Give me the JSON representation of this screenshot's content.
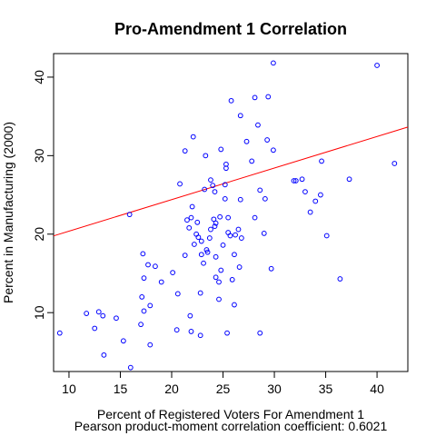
{
  "chart_data": {
    "type": "scatter",
    "title": "Pro-Amendment 1 Correlation",
    "xlabel": "Percent of Registered Voters For Amendment 1",
    "ylabel": "Percent in Manufacturing (2000)",
    "subtitle": "Pearson product-moment correlation coefficient: 0.6021",
    "xlim": [
      8.5,
      43
    ],
    "ylim": [
      2.5,
      43
    ],
    "xticks": [
      10,
      15,
      20,
      25,
      30,
      35,
      40
    ],
    "yticks": [
      10,
      20,
      30,
      40
    ],
    "grid": false,
    "legend": "none",
    "point_color": "#0000ff",
    "line_color": "#ff0000",
    "regression_line": {
      "intercept": 16.36,
      "slope": 0.4019
    },
    "points": [
      [
        9.1,
        7.4
      ],
      [
        11.7,
        9.9
      ],
      [
        12.5,
        8.0
      ],
      [
        12.9,
        10.1
      ],
      [
        13.3,
        9.6
      ],
      [
        13.4,
        4.6
      ],
      [
        14.6,
        9.3
      ],
      [
        15.3,
        6.4
      ],
      [
        16.0,
        3.0
      ],
      [
        15.9,
        22.5
      ],
      [
        17.0,
        8.5
      ],
      [
        17.1,
        12.0
      ],
      [
        17.3,
        10.2
      ],
      [
        17.3,
        14.4
      ],
      [
        17.2,
        17.5
      ],
      [
        17.7,
        16.1
      ],
      [
        17.9,
        10.9
      ],
      [
        17.9,
        5.9
      ],
      [
        18.4,
        15.9
      ],
      [
        19.0,
        13.9
      ],
      [
        20.1,
        15.1
      ],
      [
        20.5,
        7.8
      ],
      [
        20.6,
        12.4
      ],
      [
        20.8,
        26.4
      ],
      [
        21.3,
        30.6
      ],
      [
        21.3,
        17.3
      ],
      [
        21.5,
        21.8
      ],
      [
        21.7,
        20.8
      ],
      [
        21.8,
        9.6
      ],
      [
        21.9,
        7.6
      ],
      [
        21.9,
        22.1
      ],
      [
        22.0,
        23.5
      ],
      [
        22.1,
        32.4
      ],
      [
        22.2,
        18.7
      ],
      [
        22.4,
        20.0
      ],
      [
        22.6,
        19.6
      ],
      [
        22.5,
        21.5
      ],
      [
        22.8,
        7.1
      ],
      [
        22.9,
        17.4
      ],
      [
        22.9,
        19.1
      ],
      [
        22.8,
        12.5
      ],
      [
        23.1,
        16.3
      ],
      [
        23.2,
        25.7
      ],
      [
        23.3,
        30.0
      ],
      [
        23.4,
        18.0
      ],
      [
        23.5,
        17.7
      ],
      [
        23.7,
        19.5
      ],
      [
        23.8,
        20.6
      ],
      [
        23.8,
        26.9
      ],
      [
        24.0,
        26.2
      ],
      [
        24.1,
        21.9
      ],
      [
        24.2,
        21.0
      ],
      [
        24.2,
        25.4
      ],
      [
        24.3,
        14.5
      ],
      [
        24.3,
        17.1
      ],
      [
        24.3,
        21.4
      ],
      [
        24.6,
        13.9
      ],
      [
        24.6,
        11.7
      ],
      [
        24.7,
        22.2
      ],
      [
        24.8,
        15.4
      ],
      [
        24.8,
        30.8
      ],
      [
        25.0,
        18.6
      ],
      [
        25.2,
        26.3
      ],
      [
        25.2,
        24.5
      ],
      [
        25.3,
        28.4
      ],
      [
        25.3,
        28.9
      ],
      [
        25.4,
        7.4
      ],
      [
        25.5,
        20.2
      ],
      [
        25.5,
        22.1
      ],
      [
        25.7,
        19.8
      ],
      [
        25.8,
        37.0
      ],
      [
        25.9,
        14.2
      ],
      [
        26.1,
        17.4
      ],
      [
        26.1,
        11.0
      ],
      [
        26.2,
        19.9
      ],
      [
        26.5,
        20.6
      ],
      [
        26.6,
        15.8
      ],
      [
        26.7,
        35.1
      ],
      [
        26.7,
        24.4
      ],
      [
        26.8,
        19.5
      ],
      [
        27.3,
        31.8
      ],
      [
        27.8,
        29.3
      ],
      [
        28.1,
        22.1
      ],
      [
        28.1,
        37.4
      ],
      [
        28.4,
        33.9
      ],
      [
        28.6,
        7.4
      ],
      [
        28.6,
        25.6
      ],
      [
        29.0,
        20.1
      ],
      [
        29.1,
        24.5
      ],
      [
        29.3,
        32.0
      ],
      [
        29.4,
        37.5
      ],
      [
        29.7,
        15.6
      ],
      [
        29.9,
        30.7
      ],
      [
        29.9,
        41.8
      ],
      [
        31.9,
        26.8
      ],
      [
        32.1,
        26.8
      ],
      [
        32.7,
        27.0
      ],
      [
        33.0,
        25.4
      ],
      [
        33.5,
        22.8
      ],
      [
        34.0,
        24.2
      ],
      [
        34.5,
        25.0
      ],
      [
        34.6,
        29.3
      ],
      [
        35.1,
        19.8
      ],
      [
        36.4,
        14.3
      ],
      [
        37.3,
        27.0
      ],
      [
        40.0,
        41.5
      ],
      [
        41.7,
        29.0
      ]
    ]
  }
}
